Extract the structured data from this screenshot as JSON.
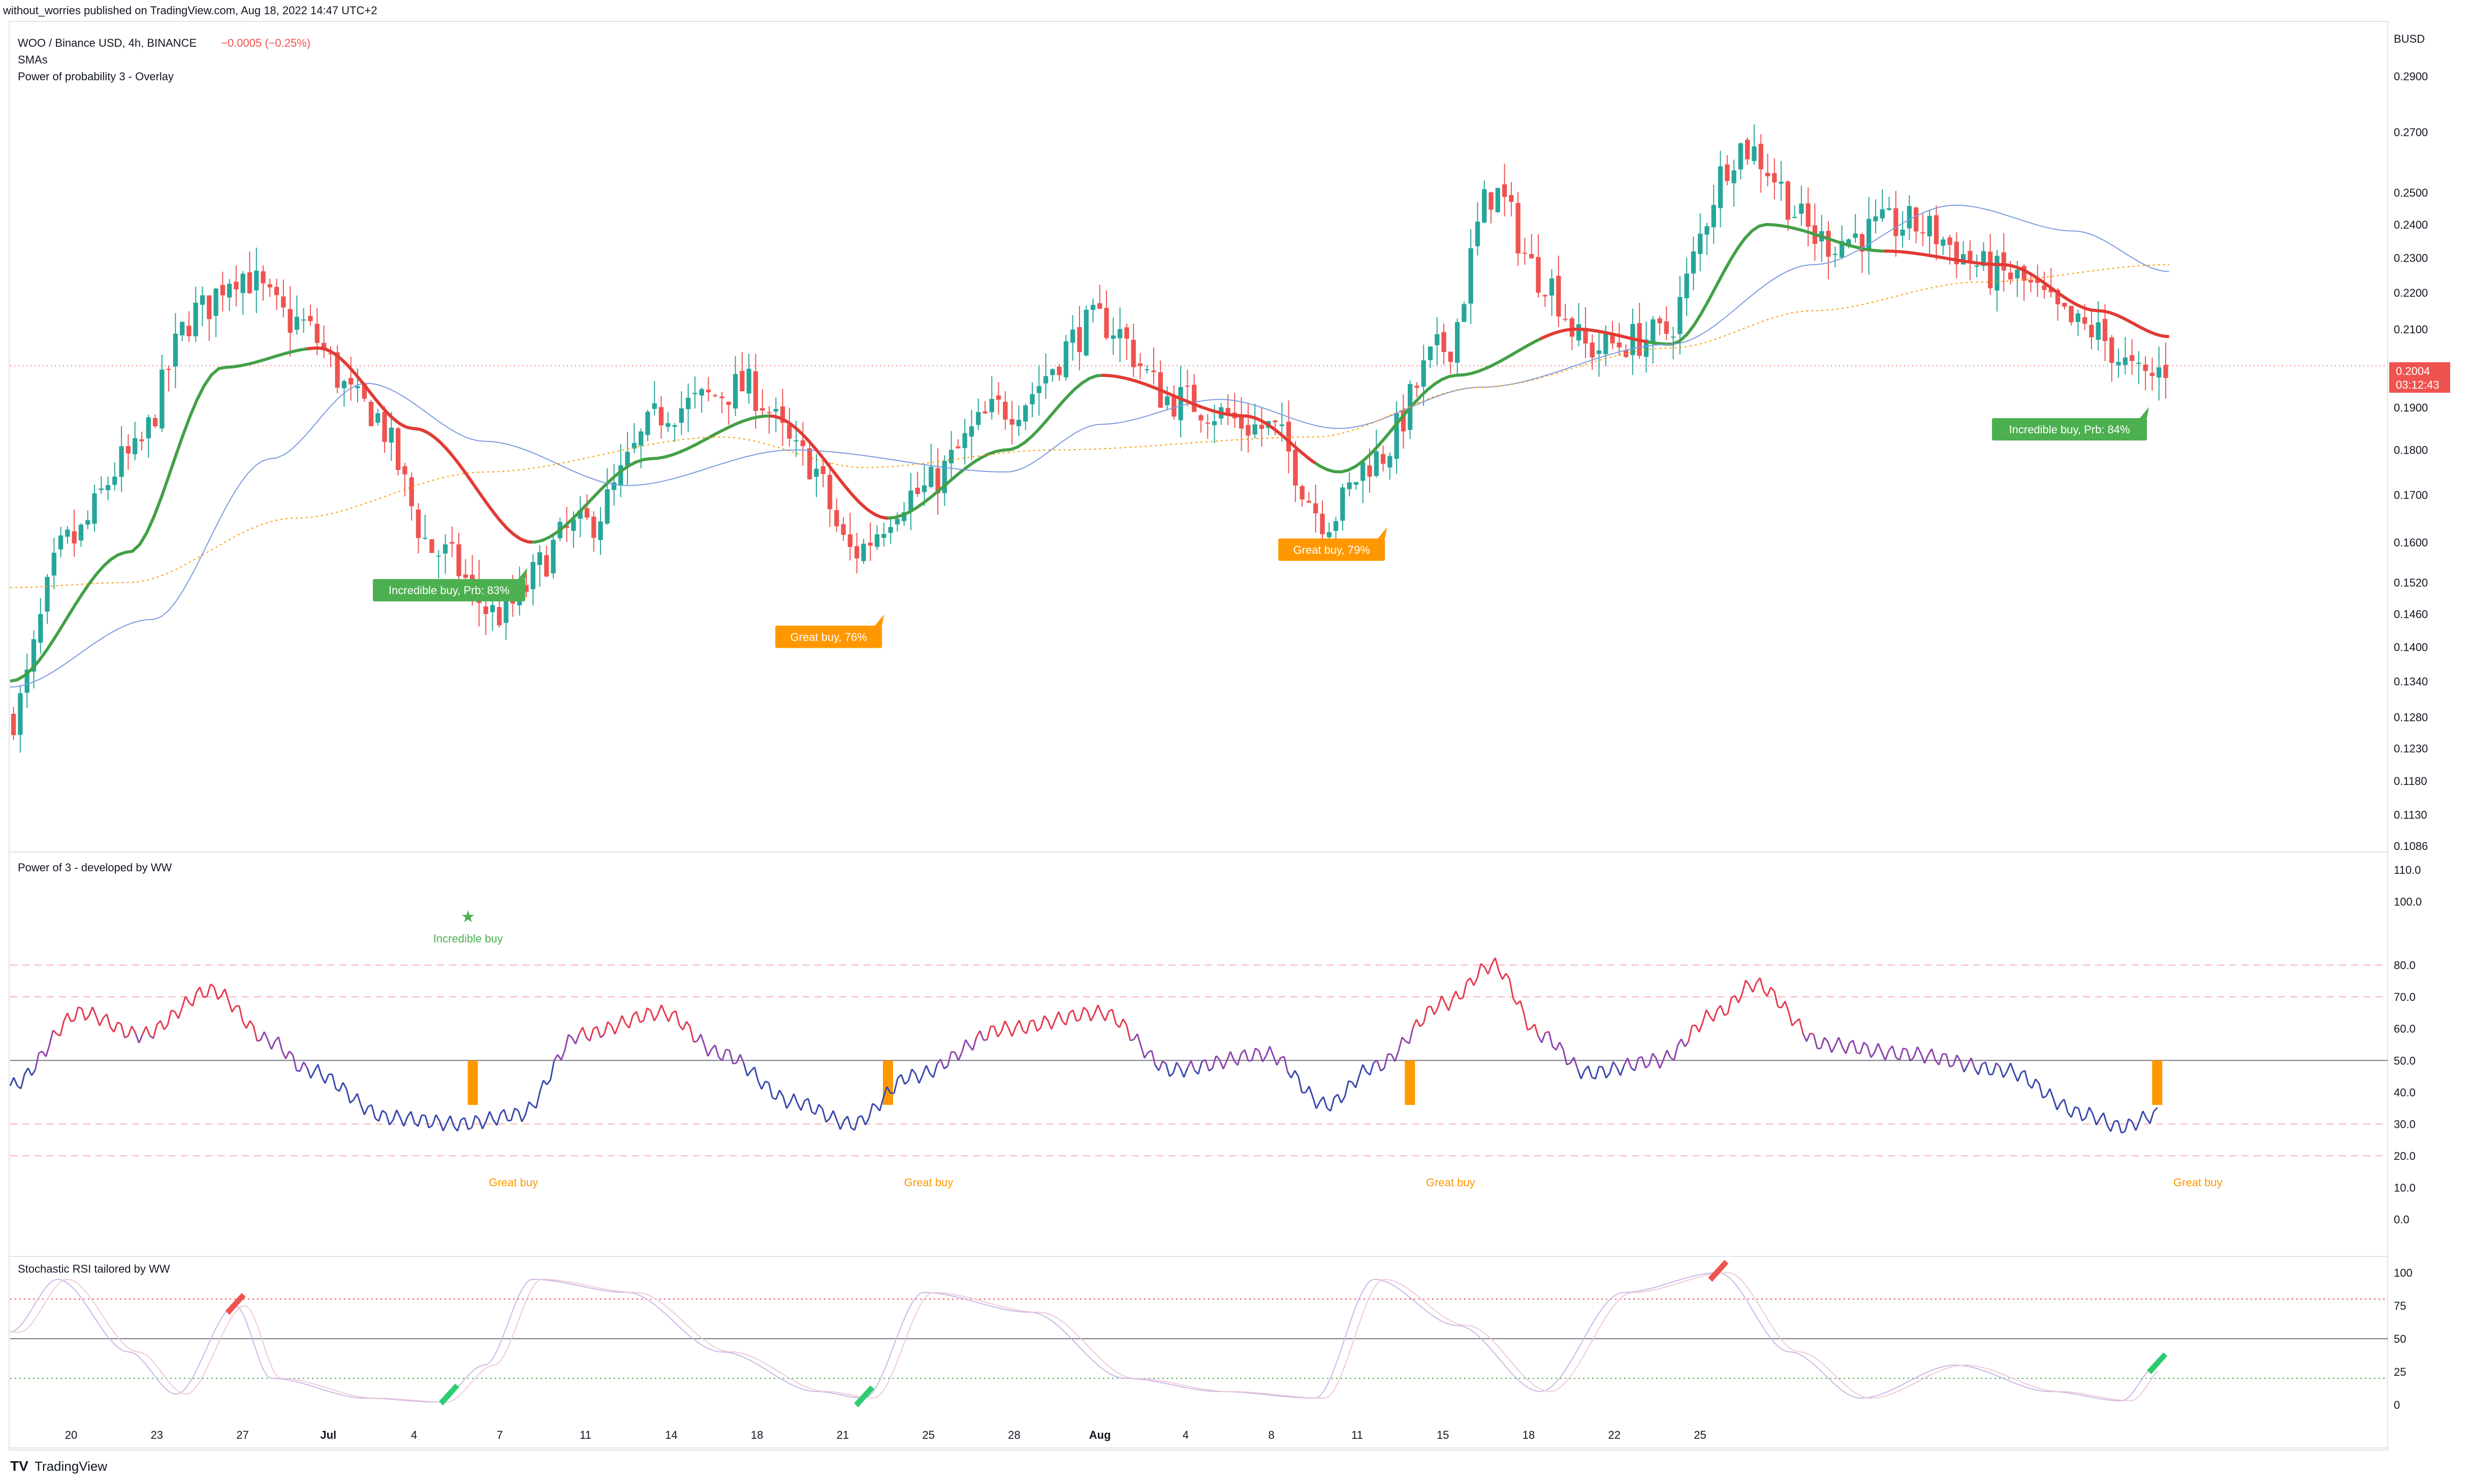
{
  "header": {
    "published": "without_worries published on TradingView.com, Aug 18, 2022 14:47 UTC+2"
  },
  "main_pane": {
    "symbol": "WOO / Binance USD, 4h, BINANCE",
    "change": "−0.0005 (−0.25%)",
    "indicator_1": "SMAs",
    "indicator_2": "Power of probability 3 - Overlay",
    "currency": "BUSD",
    "price_ticks": [
      "0.2900",
      "0.2700",
      "0.2500",
      "0.2400",
      "0.2300",
      "0.2200",
      "0.2100",
      "0.2004",
      "0.1900",
      "0.1800",
      "0.1700",
      "0.1600",
      "0.1520",
      "0.1460",
      "0.1400",
      "0.1340",
      "0.1280",
      "0.1230",
      "0.1180",
      "0.1130",
      "0.1086"
    ],
    "last_price": "0.2004",
    "countdown": "03:12:43",
    "labels": [
      {
        "text": "Incredible buy, Prb: 83%",
        "color": "#4caf50"
      },
      {
        "text": "Great buy,  76%",
        "color": "#ff9800"
      },
      {
        "text": "Great buy,  79%",
        "color": "#ff9800"
      },
      {
        "text": "Incredible buy, Prb: 84%",
        "color": "#4caf50"
      }
    ]
  },
  "power_pane": {
    "title": "Power of 3 - developed by WW",
    "ticks": [
      "110.0",
      "100.0",
      "80.0",
      "70.0",
      "60.0",
      "50.0",
      "40.0",
      "30.0",
      "20.0",
      "10.0",
      "0.0"
    ],
    "star_label": "Incredible buy",
    "great_buy": "Great buy"
  },
  "stoch_pane": {
    "title": "Stochastic RSI tailored by WW",
    "ticks": [
      "100",
      "75",
      "50",
      "25",
      "0"
    ]
  },
  "x_axis": [
    "20",
    "23",
    "27",
    "Jul",
    "4",
    "7",
    "11",
    "14",
    "18",
    "21",
    "25",
    "28",
    "Aug",
    "4",
    "8",
    "11",
    "15",
    "18",
    "22",
    "25"
  ],
  "footer": {
    "brand": "TradingView"
  },
  "colors": {
    "up": "#26a69a",
    "down": "#ef5350",
    "sma_green": "#43a047",
    "sma_red": "#e53935",
    "sma_blue": "#7b9ae0",
    "sma_orange": "#ff9800",
    "great": "#ff9800",
    "incredible": "#4caf50"
  },
  "chart_data": [
    {
      "type": "candlestick",
      "title": "WOO / Binance USD, 4h, BINANCE",
      "ylabel": "BUSD",
      "x_ticks": [
        "20",
        "23",
        "27",
        "Jul",
        "4",
        "7",
        "11",
        "14",
        "18",
        "21",
        "25",
        "28",
        "Aug",
        "4",
        "8",
        "11",
        "15",
        "18",
        "22",
        "25"
      ],
      "ylim": [
        0.1086,
        0.29
      ],
      "log_scale": true,
      "close_anchors": [
        {
          "t": 0,
          "y": 0.128
        },
        {
          "t": 0.025,
          "y": 0.16
        },
        {
          "t": 0.05,
          "y": 0.178
        },
        {
          "t": 0.08,
          "y": 0.215
        },
        {
          "t": 0.095,
          "y": 0.226
        },
        {
          "t": 0.12,
          "y": 0.212
        },
        {
          "t": 0.15,
          "y": 0.19
        },
        {
          "t": 0.18,
          "y": 0.158
        },
        {
          "t": 0.205,
          "y": 0.146
        },
        {
          "t": 0.24,
          "y": 0.163
        },
        {
          "t": 0.28,
          "y": 0.19
        },
        {
          "t": 0.31,
          "y": 0.195
        },
        {
          "t": 0.335,
          "y": 0.178
        },
        {
          "t": 0.355,
          "y": 0.158
        },
        {
          "t": 0.38,
          "y": 0.17
        },
        {
          "t": 0.42,
          "y": 0.19
        },
        {
          "t": 0.46,
          "y": 0.212
        },
        {
          "t": 0.49,
          "y": 0.192
        },
        {
          "t": 0.53,
          "y": 0.185
        },
        {
          "t": 0.555,
          "y": 0.165
        },
        {
          "t": 0.575,
          "y": 0.178
        },
        {
          "t": 0.605,
          "y": 0.205
        },
        {
          "t": 0.625,
          "y": 0.25
        },
        {
          "t": 0.645,
          "y": 0.225
        },
        {
          "t": 0.665,
          "y": 0.205
        },
        {
          "t": 0.695,
          "y": 0.208
        },
        {
          "t": 0.73,
          "y": 0.265
        },
        {
          "t": 0.765,
          "y": 0.235
        },
        {
          "t": 0.8,
          "y": 0.24
        },
        {
          "t": 0.84,
          "y": 0.225
        },
        {
          "t": 0.875,
          "y": 0.21
        },
        {
          "t": 0.9,
          "y": 0.197
        },
        {
          "t": 0.91,
          "y": 0.2004
        }
      ],
      "smas": [
        {
          "name": "",
          "color": "#43a047",
          "anchors": [
            {
              "t": 0,
              "y": 0.134
            },
            {
              "t": 0.05,
              "y": 0.158
            },
            {
              "t": 0.09,
              "y": 0.2
            },
            {
              "t": 0.13,
              "y": 0.205
            },
            {
              "t": 0.17,
              "y": 0.185
            },
            {
              "t": 0.22,
              "y": 0.16
            },
            {
              "t": 0.27,
              "y": 0.178
            },
            {
              "t": 0.32,
              "y": 0.188
            },
            {
              "t": 0.37,
              "y": 0.165
            },
            {
              "t": 0.42,
              "y": 0.18
            },
            {
              "t": 0.46,
              "y": 0.198
            },
            {
              "t": 0.52,
              "y": 0.188
            },
            {
              "t": 0.56,
              "y": 0.175
            },
            {
              "t": 0.61,
              "y": 0.198
            },
            {
              "t": 0.66,
              "y": 0.21
            },
            {
              "t": 0.7,
              "y": 0.206
            },
            {
              "t": 0.74,
              "y": 0.24
            },
            {
              "t": 0.79,
              "y": 0.232
            },
            {
              "t": 0.84,
              "y": 0.228
            },
            {
              "t": 0.88,
              "y": 0.215
            },
            {
              "t": 0.91,
              "y": 0.208
            }
          ]
        },
        {
          "name": "",
          "color": "#7b9ae0",
          "anchors": [
            {
              "t": 0,
              "y": 0.133
            },
            {
              "t": 0.06,
              "y": 0.145
            },
            {
              "t": 0.11,
              "y": 0.178
            },
            {
              "t": 0.15,
              "y": 0.196
            },
            {
              "t": 0.2,
              "y": 0.182
            },
            {
              "t": 0.26,
              "y": 0.172
            },
            {
              "t": 0.33,
              "y": 0.18
            },
            {
              "t": 0.42,
              "y": 0.175
            },
            {
              "t": 0.46,
              "y": 0.186
            },
            {
              "t": 0.51,
              "y": 0.192
            },
            {
              "t": 0.56,
              "y": 0.185
            },
            {
              "t": 0.62,
              "y": 0.195
            },
            {
              "t": 0.7,
              "y": 0.206
            },
            {
              "t": 0.76,
              "y": 0.228
            },
            {
              "t": 0.82,
              "y": 0.246
            },
            {
              "t": 0.87,
              "y": 0.238
            },
            {
              "t": 0.91,
              "y": 0.226
            }
          ]
        },
        {
          "name": "",
          "color": "#ff9800",
          "anchors": [
            {
              "t": 0,
              "y": 0.151
            },
            {
              "t": 0.05,
              "y": 0.152
            },
            {
              "t": 0.12,
              "y": 0.165
            },
            {
              "t": 0.2,
              "y": 0.175
            },
            {
              "t": 0.3,
              "y": 0.183
            },
            {
              "t": 0.36,
              "y": 0.176
            },
            {
              "t": 0.44,
              "y": 0.18
            },
            {
              "t": 0.55,
              "y": 0.183
            },
            {
              "t": 0.62,
              "y": 0.195
            },
            {
              "t": 0.7,
              "y": 0.205
            },
            {
              "t": 0.76,
              "y": 0.215
            },
            {
              "t": 0.83,
              "y": 0.223
            },
            {
              "t": 0.91,
              "y": 0.228
            }
          ]
        }
      ],
      "annotations": [
        "Incredible buy, Prb: 83%",
        "Great buy,  76%",
        "Great buy,  79%",
        "Incredible buy, Prb: 84%"
      ]
    },
    {
      "type": "line",
      "title": "Power of 3 - developed by WW",
      "ylim": [
        0,
        110
      ],
      "levels": [
        80,
        70,
        50,
        30,
        20
      ],
      "anchors": [
        {
          "t": 0,
          "y": 42
        },
        {
          "t": 0.03,
          "y": 65
        },
        {
          "t": 0.055,
          "y": 58
        },
        {
          "t": 0.085,
          "y": 72
        },
        {
          "t": 0.11,
          "y": 56
        },
        {
          "t": 0.125,
          "y": 47
        },
        {
          "t": 0.16,
          "y": 32
        },
        {
          "t": 0.19,
          "y": 30
        },
        {
          "t": 0.215,
          "y": 33
        },
        {
          "t": 0.24,
          "y": 58
        },
        {
          "t": 0.275,
          "y": 65
        },
        {
          "t": 0.3,
          "y": 52
        },
        {
          "t": 0.33,
          "y": 37
        },
        {
          "t": 0.355,
          "y": 30
        },
        {
          "t": 0.38,
          "y": 45
        },
        {
          "t": 0.42,
          "y": 60
        },
        {
          "t": 0.46,
          "y": 65
        },
        {
          "t": 0.49,
          "y": 47
        },
        {
          "t": 0.53,
          "y": 52
        },
        {
          "t": 0.555,
          "y": 36
        },
        {
          "t": 0.575,
          "y": 48
        },
        {
          "t": 0.605,
          "y": 68
        },
        {
          "t": 0.625,
          "y": 80
        },
        {
          "t": 0.645,
          "y": 58
        },
        {
          "t": 0.665,
          "y": 46
        },
        {
          "t": 0.695,
          "y": 50
        },
        {
          "t": 0.72,
          "y": 65
        },
        {
          "t": 0.735,
          "y": 74
        },
        {
          "t": 0.765,
          "y": 55
        },
        {
          "t": 0.8,
          "y": 52
        },
        {
          "t": 0.84,
          "y": 47
        },
        {
          "t": 0.875,
          "y": 33
        },
        {
          "t": 0.89,
          "y": 29
        },
        {
          "t": 0.905,
          "y": 33
        }
      ],
      "great_buy_markers_t": [
        0.195,
        0.37,
        0.59,
        0.905
      ]
    },
    {
      "type": "line",
      "title": "Stochastic RSI tailored by WW",
      "ylim": [
        0,
        100
      ],
      "levels": [
        80,
        50,
        20
      ],
      "anchors": [
        {
          "t": 0,
          "y": 55
        },
        {
          "t": 0.02,
          "y": 95
        },
        {
          "t": 0.05,
          "y": 40
        },
        {
          "t": 0.07,
          "y": 8
        },
        {
          "t": 0.095,
          "y": 75
        },
        {
          "t": 0.11,
          "y": 20
        },
        {
          "t": 0.15,
          "y": 5
        },
        {
          "t": 0.18,
          "y": 2
        },
        {
          "t": 0.2,
          "y": 30
        },
        {
          "t": 0.22,
          "y": 95
        },
        {
          "t": 0.26,
          "y": 85
        },
        {
          "t": 0.3,
          "y": 40
        },
        {
          "t": 0.34,
          "y": 10
        },
        {
          "t": 0.36,
          "y": 5
        },
        {
          "t": 0.385,
          "y": 85
        },
        {
          "t": 0.43,
          "y": 70
        },
        {
          "t": 0.47,
          "y": 20
        },
        {
          "t": 0.51,
          "y": 10
        },
        {
          "t": 0.55,
          "y": 5
        },
        {
          "t": 0.575,
          "y": 95
        },
        {
          "t": 0.61,
          "y": 60
        },
        {
          "t": 0.645,
          "y": 10
        },
        {
          "t": 0.68,
          "y": 85
        },
        {
          "t": 0.72,
          "y": 100
        },
        {
          "t": 0.75,
          "y": 40
        },
        {
          "t": 0.78,
          "y": 5
        },
        {
          "t": 0.82,
          "y": 30
        },
        {
          "t": 0.86,
          "y": 10
        },
        {
          "t": 0.89,
          "y": 3
        },
        {
          "t": 0.905,
          "y": 30
        }
      ]
    }
  ]
}
